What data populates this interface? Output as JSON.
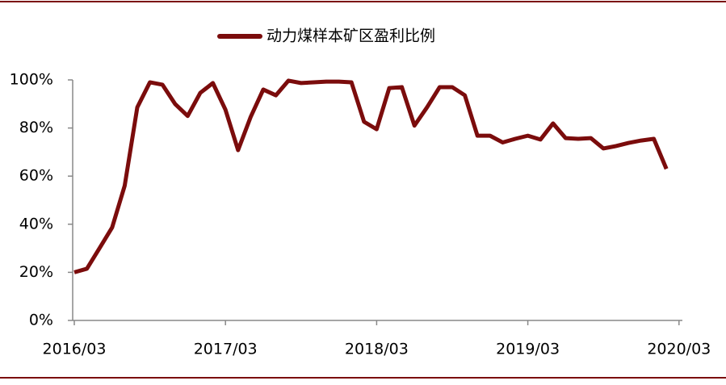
{
  "chart_data": {
    "type": "line",
    "x": [
      "2016/03",
      "2016/04",
      "2016/05",
      "2016/06",
      "2016/07",
      "2016/08",
      "2016/09",
      "2016/10",
      "2016/11",
      "2016/12",
      "2017/01",
      "2017/02",
      "2017/03",
      "2017/04",
      "2017/05",
      "2017/06",
      "2017/07",
      "2017/08",
      "2017/09",
      "2017/10",
      "2017/11",
      "2017/12",
      "2018/01",
      "2018/02",
      "2018/03",
      "2018/04",
      "2018/05",
      "2018/06",
      "2018/07",
      "2018/08",
      "2018/09",
      "2018/10",
      "2018/11",
      "2018/12",
      "2019/01",
      "2019/02",
      "2019/03",
      "2019/04",
      "2019/05",
      "2019/06",
      "2019/07",
      "2019/08",
      "2019/09",
      "2019/10",
      "2019/11",
      "2019/12",
      "2020/01",
      "2020/02"
    ],
    "series": [
      {
        "name": "动力煤样本矿区盈利比例",
        "color": "#7b0c0c",
        "values": [
          20,
          21.5,
          30,
          38.6,
          56,
          88.6,
          99,
          98,
          90,
          85,
          94.6,
          98.7,
          87.6,
          70.8,
          84.6,
          96,
          93.6,
          99.7,
          98.7,
          99,
          99.3,
          99.3,
          99,
          82.6,
          79.5,
          96.6,
          97,
          81,
          88.6,
          97,
          97,
          93.6,
          76.8,
          76.8,
          74,
          75.5,
          76.8,
          75.2,
          81.9,
          75.8,
          75.5,
          75.8,
          71.5,
          72.5,
          73.8,
          74.8,
          75.5,
          63
        ]
      }
    ],
    "ylim": [
      0,
      100
    ],
    "yticks": [
      {
        "value": 0,
        "label": "0%"
      },
      {
        "value": 20,
        "label": "20%"
      },
      {
        "value": 40,
        "label": "40%"
      },
      {
        "value": 60,
        "label": "60%"
      },
      {
        "value": 80,
        "label": "80%"
      },
      {
        "value": 100,
        "label": "100%"
      }
    ],
    "xticks": [
      "2016/03",
      "2017/03",
      "2018/03",
      "2019/03",
      "2020/03"
    ],
    "legend": "top"
  }
}
